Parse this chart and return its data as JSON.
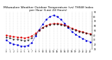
{
  "title": "Milwaukee Weather Outdoor Temperature (vs) THSW Index per Hour (Last 24 Hours)",
  "hours": [
    0,
    1,
    2,
    3,
    4,
    5,
    6,
    7,
    8,
    9,
    10,
    11,
    12,
    13,
    14,
    15,
    16,
    17,
    18,
    19,
    20,
    21,
    22,
    23
  ],
  "temp": [
    40,
    38,
    37,
    36,
    35,
    34,
    35,
    38,
    44,
    51,
    57,
    61,
    64,
    65,
    65,
    64,
    62,
    59,
    55,
    52,
    49,
    47,
    45,
    43
  ],
  "thsw": [
    30,
    24,
    21,
    19,
    17,
    16,
    18,
    24,
    38,
    52,
    64,
    74,
    80,
    83,
    80,
    74,
    66,
    57,
    48,
    42,
    37,
    33,
    29,
    26
  ],
  "feels": [
    36,
    34,
    32,
    31,
    30,
    29,
    30,
    34,
    41,
    50,
    56,
    60,
    63,
    64,
    64,
    63,
    61,
    58,
    54,
    51,
    48,
    46,
    44,
    42
  ],
  "temp_color": "#dd0000",
  "thsw_color": "#0000dd",
  "feels_color": "#111111",
  "bg_color": "#ffffff",
  "grid_color": "#888888",
  "ylim": [
    10,
    90
  ],
  "ytick_values": [
    10,
    20,
    30,
    40,
    50,
    60,
    70,
    80,
    90
  ],
  "ytick_labels": [
    "10",
    "20",
    "30",
    "40",
    "50",
    "60",
    "70",
    "80",
    "90"
  ]
}
